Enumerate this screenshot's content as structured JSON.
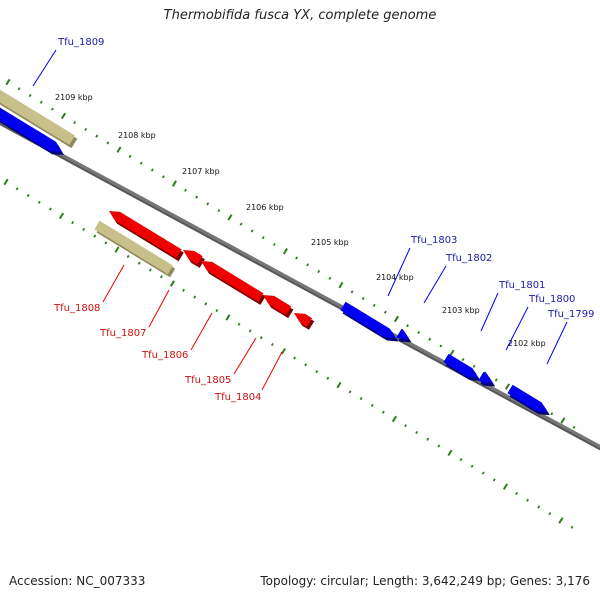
{
  "title": "Thermobifida fusca YX, complete genome",
  "accession_text": "Accession: NC_007333",
  "stats_text": "Topology: circular; Length: 3,642,249 bp; Genes: 3,176",
  "colors": {
    "forward_gene": "#0000ee",
    "reverse_gene": "#ee0000",
    "other_feature": "#c8c08a",
    "backbone": "#777777",
    "tick": "#2e7d1e",
    "forward_label": "#1a1aaa",
    "reverse_label": "#cc1111"
  },
  "ruler_labels": [
    {
      "text": "2109 kbp"
    },
    {
      "text": "2108 kbp"
    },
    {
      "text": "2107 kbp"
    },
    {
      "text": "2106 kbp"
    },
    {
      "text": "2105 kbp"
    },
    {
      "text": "2104 kbp"
    },
    {
      "text": "2103 kbp"
    },
    {
      "text": "2102 kbp"
    }
  ],
  "forward_genes": [
    {
      "name": "Tfu_1809"
    },
    {
      "name": "Tfu_1803"
    },
    {
      "name": "Tfu_1802"
    },
    {
      "name": "Tfu_1801"
    },
    {
      "name": "Tfu_1800"
    },
    {
      "name": "Tfu_1799"
    }
  ],
  "reverse_genes": [
    {
      "name": "Tfu_1808"
    },
    {
      "name": "Tfu_1807"
    },
    {
      "name": "Tfu_1806"
    },
    {
      "name": "Tfu_1805"
    },
    {
      "name": "Tfu_1804"
    }
  ]
}
